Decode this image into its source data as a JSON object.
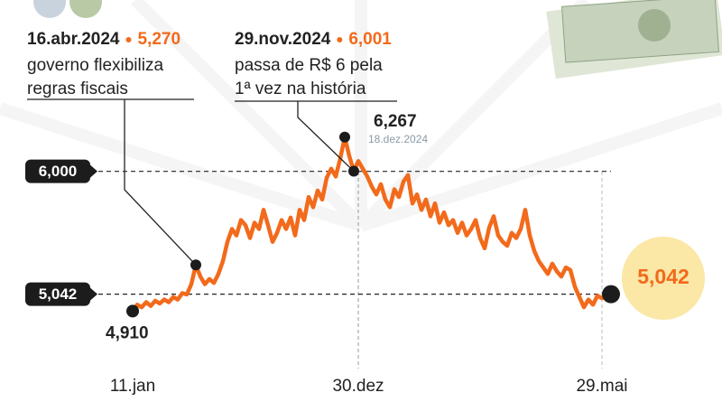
{
  "chart_data": {
    "type": "line",
    "color": "#f26a1b",
    "categories": [
      "11.jan",
      null,
      null,
      null,
      null,
      null,
      null,
      null,
      null,
      null,
      null,
      null,
      null,
      null,
      null,
      null,
      null,
      null,
      null,
      null,
      null,
      null,
      null,
      null,
      null,
      null,
      null,
      null,
      null,
      null,
      null,
      null,
      null,
      null,
      null,
      null,
      null,
      null,
      null,
      null,
      null,
      null,
      null,
      null,
      null,
      null,
      null,
      null,
      null,
      null,
      "30.dez",
      null,
      null,
      null,
      null,
      null,
      null,
      null,
      null,
      null,
      null,
      null,
      null,
      null,
      null,
      null,
      null,
      null,
      null,
      null,
      null,
      null,
      null,
      null,
      null,
      null,
      null,
      null,
      null,
      null,
      null,
      null,
      null,
      null,
      null,
      null,
      null,
      null,
      null,
      null,
      null,
      null,
      null,
      null,
      null,
      null,
      null,
      null,
      null,
      null,
      null,
      null,
      null,
      null,
      "29.mai",
      null
    ],
    "values": [
      4.91,
      4.96,
      4.94,
      4.98,
      4.95,
      4.99,
      4.97,
      5.0,
      4.98,
      5.02,
      5.0,
      5.05,
      5.04,
      5.12,
      5.27,
      5.18,
      5.12,
      5.16,
      5.13,
      5.2,
      5.3,
      5.45,
      5.55,
      5.5,
      5.62,
      5.58,
      5.48,
      5.6,
      5.55,
      5.7,
      5.58,
      5.45,
      5.52,
      5.62,
      5.55,
      5.64,
      5.5,
      5.7,
      5.62,
      5.8,
      5.72,
      5.85,
      5.78,
      5.95,
      6.02,
      5.96,
      6.1,
      6.267,
      6.12,
      6.001,
      6.08,
      6.02,
      5.96,
      5.88,
      5.82,
      5.9,
      5.78,
      5.72,
      5.86,
      5.8,
      5.92,
      5.97,
      5.75,
      5.82,
      5.7,
      5.78,
      5.65,
      5.75,
      5.6,
      5.68,
      5.58,
      5.62,
      5.52,
      5.6,
      5.5,
      5.55,
      5.62,
      5.48,
      5.4,
      5.56,
      5.65,
      5.5,
      5.45,
      5.42,
      5.52,
      5.48,
      5.55,
      5.7,
      5.5,
      5.38,
      5.3,
      5.25,
      5.2,
      5.28,
      5.22,
      5.18,
      5.25,
      5.23,
      5.1,
      5.02,
      4.94,
      5.0,
      4.96,
      5.03,
      5.01,
      5.042
    ],
    "ylim": [
      4.8,
      6.35
    ],
    "yticks": [
      {
        "value": 6,
        "label": "6,000"
      },
      {
        "value": 5.042,
        "label": "5,042"
      }
    ],
    "annotations": [
      {
        "date": "16.abr.2024",
        "value": 5.27,
        "label": "5,270",
        "text": [
          "governo flexibiliza",
          "regras fiscais"
        ]
      },
      {
        "date": "29.nov.2024",
        "value": 6.001,
        "label": "6,001",
        "text": [
          "passa de R$ 6 pela",
          "1ª vez na história"
        ]
      },
      {
        "value": 6.267,
        "label": "6,267",
        "date": "18.dez.2024"
      },
      {
        "value": 4.91,
        "label": "4,910"
      },
      {
        "value": 5.042,
        "label": "5,042"
      }
    ]
  }
}
